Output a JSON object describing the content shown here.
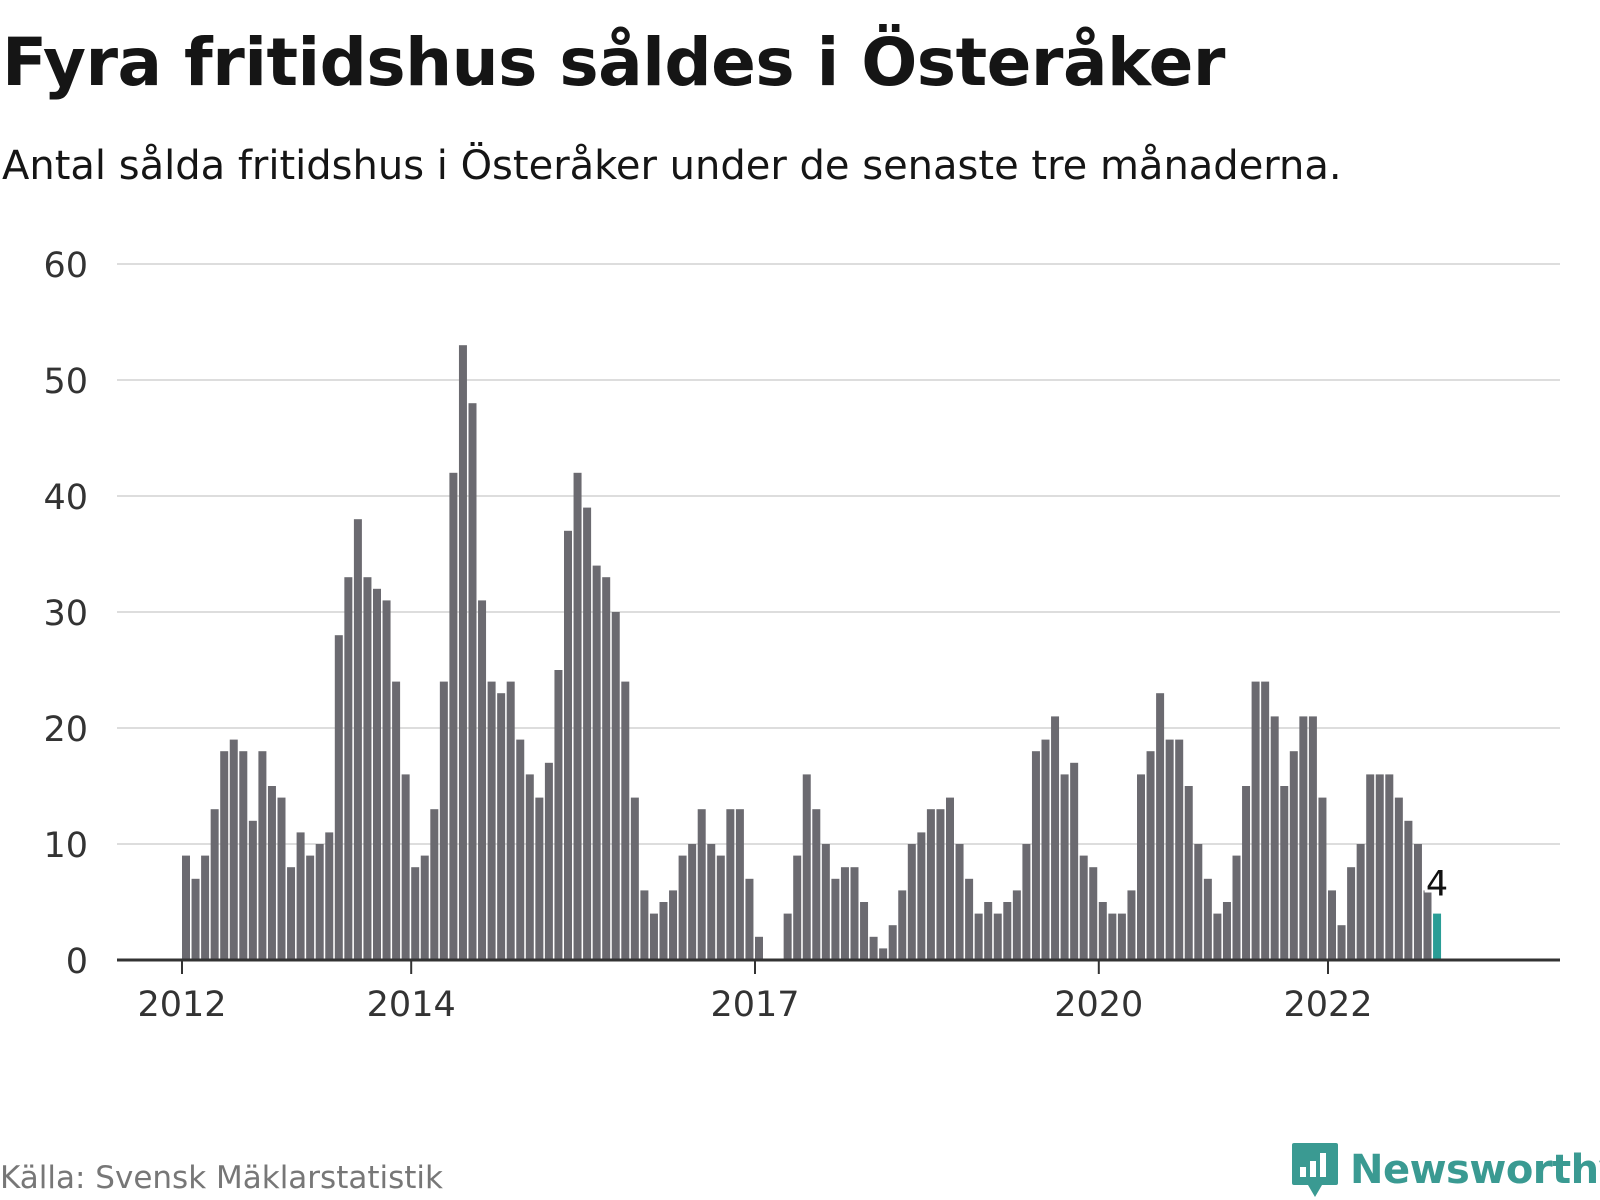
{
  "header": {
    "title": "Fyra fritidshus såldes i Österåker",
    "subtitle": "Antal sålda fritidshus i Österåker under de senaste tre månaderna."
  },
  "footer": {
    "source": "Källa: Svensk Mäklarstatistik",
    "logo_text": "Newsworthy",
    "logo_icon": "bar-chart-speech-bubble-icon"
  },
  "colors": {
    "bar": "#6b6a70",
    "highlight": "#2a9d96",
    "grid": "#dddddd",
    "axis": "#333333",
    "logo": "#3a9a92"
  },
  "chart_data": {
    "type": "bar",
    "title": "Fyra fritidshus såldes i Österåker",
    "subtitle": "Antal sålda fritidshus i Österåker under de senaste tre månaderna.",
    "ylim": [
      0,
      60
    ],
    "yticks": [
      0,
      10,
      20,
      30,
      40,
      50,
      60
    ],
    "xticks": [
      {
        "label": "2012",
        "index": 0
      },
      {
        "label": "2014",
        "index": 24
      },
      {
        "label": "2017",
        "index": 60
      },
      {
        "label": "2020",
        "index": 96
      },
      {
        "label": "2022",
        "index": 120
      }
    ],
    "grid": true,
    "highlight": {
      "index": 131,
      "label": "4"
    },
    "values": [
      9,
      7,
      9,
      13,
      18,
      19,
      18,
      12,
      18,
      15,
      14,
      8,
      11,
      9,
      10,
      11,
      28,
      33,
      38,
      33,
      32,
      31,
      24,
      16,
      8,
      9,
      13,
      24,
      42,
      53,
      48,
      31,
      24,
      23,
      24,
      19,
      16,
      14,
      17,
      25,
      37,
      42,
      39,
      34,
      33,
      30,
      24,
      14,
      6,
      4,
      5,
      6,
      9,
      10,
      13,
      10,
      9,
      13,
      13,
      7,
      2,
      0,
      0,
      4,
      9,
      16,
      13,
      10,
      7,
      8,
      8,
      5,
      2,
      1,
      3,
      6,
      10,
      11,
      13,
      13,
      14,
      10,
      7,
      4,
      5,
      4,
      5,
      6,
      10,
      18,
      19,
      21,
      16,
      17,
      9,
      8,
      5,
      4,
      4,
      6,
      16,
      18,
      23,
      19,
      19,
      15,
      10,
      7,
      4,
      5,
      9,
      15,
      24,
      24,
      21,
      15,
      18,
      21,
      21,
      14,
      6,
      3,
      8,
      10,
      16,
      16,
      16,
      14,
      12,
      10,
      6,
      4
    ]
  }
}
